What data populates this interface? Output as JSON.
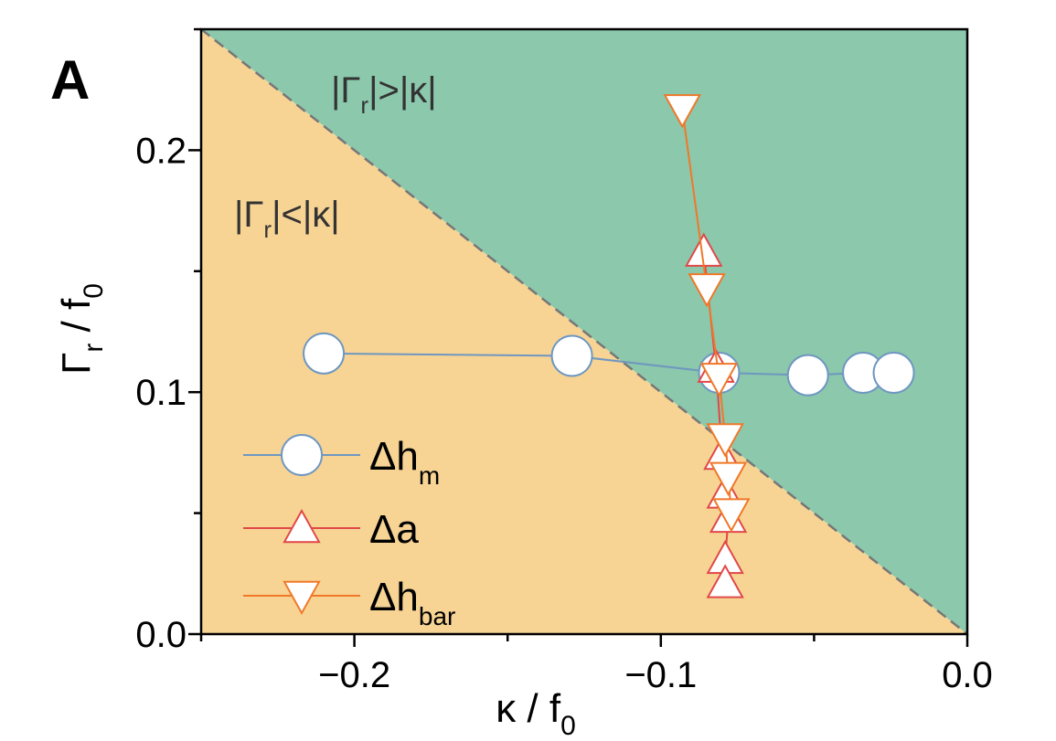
{
  "panel_label": "A",
  "chart_data": {
    "type": "scatter",
    "xlabel": {
      "main": "κ / f",
      "sub": "0"
    },
    "ylabel": {
      "main": "Γ",
      "sub1": "r",
      "mid": " / f",
      "sub2": "0"
    },
    "xlim": [
      -0.25,
      0.0
    ],
    "ylim": [
      0.0,
      0.25
    ],
    "x_ticks": [
      -0.2,
      -0.1,
      0.0
    ],
    "x_tick_labels": [
      "−0.2",
      "−0.1",
      "0.0"
    ],
    "y_ticks": [
      0.0,
      0.1,
      0.2
    ],
    "y_tick_labels": [
      "0.0",
      "0.1",
      "0.2"
    ],
    "regions": [
      {
        "pre": "|Γ",
        "sub": "r",
        "post": "|>|κ|",
        "color": "#8bc8ac"
      },
      {
        "pre": "|Γ",
        "sub": "r",
        "post": "|<|κ|",
        "color": "#f7d494"
      }
    ],
    "boundary": {
      "x": [
        -0.25,
        0.0
      ],
      "y": [
        0.25,
        0.0
      ],
      "style": "dashed"
    },
    "legend_position": "lower-left",
    "series": [
      {
        "name": "Δh",
        "name_sub": "m",
        "marker": "circle",
        "line_color": "#6f97c0",
        "marker_edge": "#6f97c0",
        "marker_fill": "#ffffff",
        "x": [
          -0.21,
          -0.129,
          -0.081,
          -0.052,
          -0.034,
          -0.024
        ],
        "y": [
          0.116,
          0.115,
          0.108,
          0.107,
          0.108,
          0.108
        ]
      },
      {
        "name": "Δa",
        "name_sub": "",
        "marker": "triangle-up",
        "line_color": "#e04848",
        "marker_edge": "#e04848",
        "marker_fill": "#ffffff",
        "x": [
          -0.086,
          -0.082,
          -0.08,
          -0.079,
          -0.078,
          -0.079,
          -0.079
        ],
        "y": [
          0.158,
          0.11,
          0.074,
          0.058,
          0.048,
          0.031,
          0.021
        ]
      },
      {
        "name": "Δh",
        "name_sub": "bar",
        "marker": "triangle-down",
        "line_color": "#f07828",
        "marker_edge": "#f07828",
        "marker_fill": "#ffffff",
        "x": [
          -0.093,
          -0.085,
          -0.081,
          -0.079,
          -0.078,
          -0.077
        ],
        "y": [
          0.217,
          0.143,
          0.106,
          0.081,
          0.065,
          0.05
        ]
      }
    ]
  }
}
